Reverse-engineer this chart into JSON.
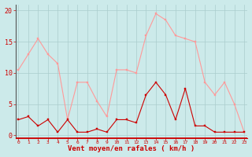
{
  "x": [
    0,
    1,
    2,
    3,
    4,
    5,
    6,
    7,
    8,
    9,
    10,
    11,
    12,
    13,
    14,
    15,
    16,
    17,
    18,
    19,
    20,
    21,
    22,
    23
  ],
  "vent_moyen": [
    2.5,
    3.0,
    1.5,
    2.5,
    0.5,
    2.5,
    0.5,
    0.5,
    1.0,
    0.5,
    2.5,
    2.5,
    2.0,
    6.5,
    8.5,
    6.5,
    2.5,
    7.5,
    1.5,
    1.5,
    0.5,
    0.5,
    0.5,
    0.5
  ],
  "rafales": [
    10.5,
    13.0,
    15.5,
    13.0,
    11.5,
    2.5,
    8.5,
    8.5,
    5.5,
    3.0,
    10.5,
    10.5,
    10.0,
    16.0,
    19.5,
    18.5,
    16.0,
    15.5,
    15.0,
    8.5,
    6.5,
    8.5,
    5.0,
    0.5
  ],
  "color_moyen": "#cc0000",
  "color_rafales": "#ff9999",
  "bg_color": "#cceaea",
  "grid_color": "#aacccc",
  "xlabel": "Vent moyen/en rafales ( km/h )",
  "xlabel_color": "#cc0000",
  "yticks": [
    0,
    5,
    10,
    15,
    20
  ],
  "ylim": [
    -0.5,
    21
  ],
  "xlim": [
    -0.3,
    23.3
  ]
}
